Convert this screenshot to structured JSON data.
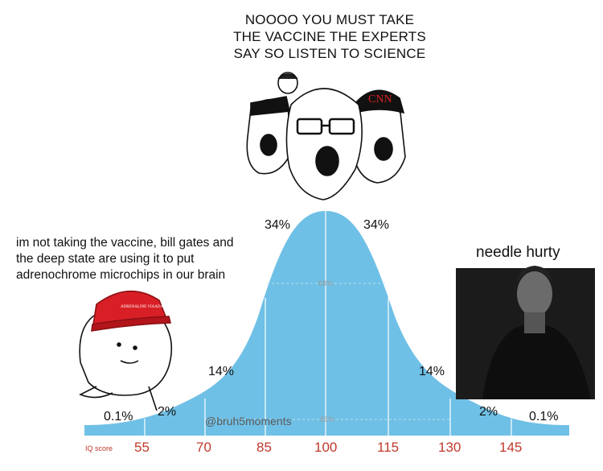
{
  "captions": {
    "top": "NOOOO YOU MUST TAKE\nTHE VACCINE THE EXPERTS\nSAY SO LISTEN TO SCIENCE",
    "left": "im not taking the vaccine, bill gates and\nthe deep state are using it to put\nadrenochrome microchips in our brain",
    "right": "needle hurty"
  },
  "hat_text": "ADRENALINE VIAADA TAHS",
  "cnn_logo": "CNN",
  "watermark": "@bruh5moments",
  "percentages": {
    "p34_left": "34%",
    "p34_right": "34%",
    "p68": "68%",
    "p14_left": "14%",
    "p14_right": "14%",
    "p95": "95%",
    "p2_left": "2%",
    "p2_right": "2%",
    "p01_left": "0.1%",
    "p01_right": "0.1%"
  },
  "axis": {
    "label": "IQ score",
    "ticks": [
      "55",
      "70",
      "85",
      "100",
      "115",
      "130",
      "145"
    ]
  },
  "colors": {
    "curve": "#6fc0e6",
    "lines": "#ffffff",
    "tick_text": "#c0392b"
  }
}
